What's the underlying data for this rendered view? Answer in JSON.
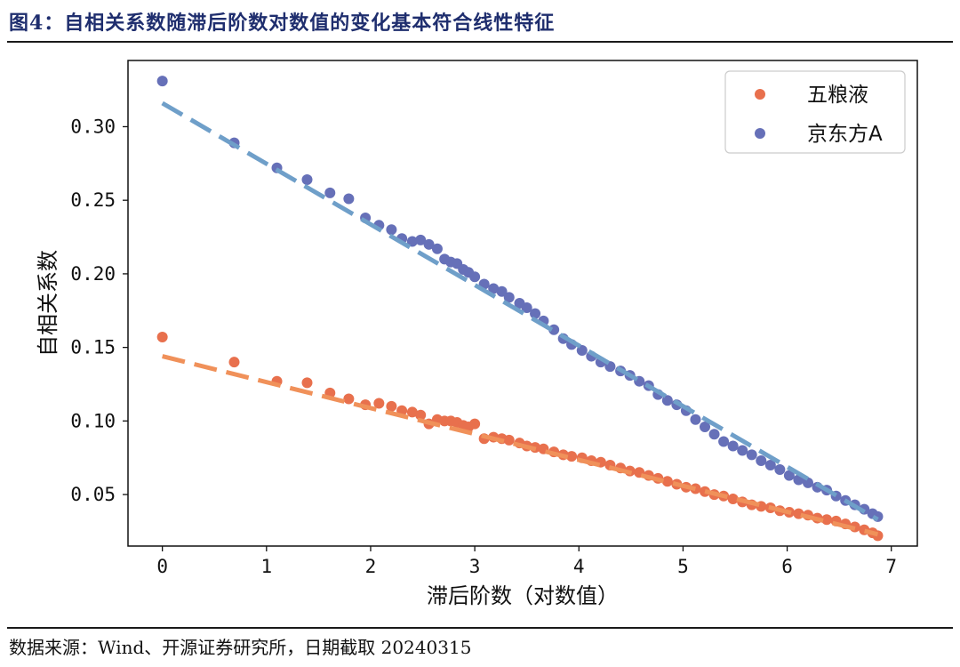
{
  "figure_title": "图4：自相关系数随滞后阶数对数值的变化基本符合线性特征",
  "source_note": "数据来源：Wind、开源证券研究所，日期截取 20240315",
  "chart_data": {
    "type": "scatter",
    "xlabel": "滞后阶数（对数值）",
    "ylabel": "自相关系数",
    "xlim": [
      -0.33,
      7.25
    ],
    "ylim": [
      0.015,
      0.345
    ],
    "xticks": [
      0,
      1,
      2,
      3,
      4,
      5,
      6,
      7
    ],
    "yticks": [
      0.05,
      0.1,
      0.15,
      0.2,
      0.25,
      0.3
    ],
    "ytick_labels": [
      "0.05",
      "0.10",
      "0.15",
      "0.20",
      "0.25",
      "0.30"
    ],
    "legend_position": "top-right",
    "series": [
      {
        "name": "五粮液",
        "color": "#e8704d",
        "trend_color": "#f0915a",
        "points": [
          [
            0.0,
            0.157
          ],
          [
            0.69,
            0.14
          ],
          [
            1.1,
            0.127
          ],
          [
            1.39,
            0.126
          ],
          [
            1.61,
            0.119
          ],
          [
            1.79,
            0.115
          ],
          [
            1.95,
            0.111
          ],
          [
            2.08,
            0.112
          ],
          [
            2.2,
            0.11
          ],
          [
            2.3,
            0.107
          ],
          [
            2.4,
            0.106
          ],
          [
            2.48,
            0.104
          ],
          [
            2.56,
            0.098
          ],
          [
            2.64,
            0.101
          ],
          [
            2.71,
            0.1
          ],
          [
            2.77,
            0.1
          ],
          [
            2.83,
            0.099
          ],
          [
            2.89,
            0.097
          ],
          [
            2.94,
            0.096
          ],
          [
            3.0,
            0.098
          ],
          [
            3.09,
            0.088
          ],
          [
            3.18,
            0.089
          ],
          [
            3.26,
            0.088
          ],
          [
            3.33,
            0.087
          ],
          [
            3.43,
            0.085
          ],
          [
            3.5,
            0.083
          ],
          [
            3.58,
            0.082
          ],
          [
            3.66,
            0.081
          ],
          [
            3.76,
            0.079
          ],
          [
            3.85,
            0.077
          ],
          [
            3.93,
            0.076
          ],
          [
            4.03,
            0.075
          ],
          [
            4.12,
            0.073
          ],
          [
            4.21,
            0.072
          ],
          [
            4.3,
            0.07
          ],
          [
            4.4,
            0.068
          ],
          [
            4.49,
            0.066
          ],
          [
            4.58,
            0.065
          ],
          [
            4.67,
            0.063
          ],
          [
            4.76,
            0.061
          ],
          [
            4.85,
            0.059
          ],
          [
            4.94,
            0.057
          ],
          [
            5.03,
            0.055
          ],
          [
            5.12,
            0.054
          ],
          [
            5.21,
            0.052
          ],
          [
            5.3,
            0.05
          ],
          [
            5.39,
            0.049
          ],
          [
            5.48,
            0.047
          ],
          [
            5.57,
            0.045
          ],
          [
            5.66,
            0.043
          ],
          [
            5.75,
            0.042
          ],
          [
            5.84,
            0.041
          ],
          [
            5.93,
            0.039
          ],
          [
            6.02,
            0.038
          ],
          [
            6.11,
            0.037
          ],
          [
            6.2,
            0.036
          ],
          [
            6.29,
            0.034
          ],
          [
            6.38,
            0.033
          ],
          [
            6.47,
            0.032
          ],
          [
            6.56,
            0.03
          ],
          [
            6.65,
            0.028
          ],
          [
            6.74,
            0.026
          ],
          [
            6.82,
            0.024
          ],
          [
            6.87,
            0.022
          ]
        ],
        "trend": [
          [
            0.0,
            0.144
          ],
          [
            6.87,
            0.023
          ]
        ]
      },
      {
        "name": "京东方A",
        "color": "#6670b8",
        "trend_color": "#6f9fc9",
        "points": [
          [
            0.0,
            0.331
          ],
          [
            0.69,
            0.289
          ],
          [
            1.1,
            0.272
          ],
          [
            1.39,
            0.264
          ],
          [
            1.61,
            0.255
          ],
          [
            1.79,
            0.251
          ],
          [
            1.95,
            0.238
          ],
          [
            2.08,
            0.233
          ],
          [
            2.2,
            0.23
          ],
          [
            2.3,
            0.224
          ],
          [
            2.4,
            0.222
          ],
          [
            2.48,
            0.223
          ],
          [
            2.56,
            0.22
          ],
          [
            2.64,
            0.217
          ],
          [
            2.71,
            0.21
          ],
          [
            2.77,
            0.208
          ],
          [
            2.83,
            0.207
          ],
          [
            2.89,
            0.203
          ],
          [
            2.94,
            0.201
          ],
          [
            3.0,
            0.198
          ],
          [
            3.09,
            0.193
          ],
          [
            3.18,
            0.19
          ],
          [
            3.26,
            0.188
          ],
          [
            3.33,
            0.184
          ],
          [
            3.43,
            0.18
          ],
          [
            3.5,
            0.177
          ],
          [
            3.58,
            0.173
          ],
          [
            3.66,
            0.168
          ],
          [
            3.76,
            0.162
          ],
          [
            3.85,
            0.156
          ],
          [
            3.93,
            0.152
          ],
          [
            4.03,
            0.148
          ],
          [
            4.12,
            0.144
          ],
          [
            4.21,
            0.14
          ],
          [
            4.3,
            0.137
          ],
          [
            4.4,
            0.134
          ],
          [
            4.49,
            0.131
          ],
          [
            4.58,
            0.127
          ],
          [
            4.67,
            0.124
          ],
          [
            4.76,
            0.118
          ],
          [
            4.85,
            0.114
          ],
          [
            4.94,
            0.111
          ],
          [
            5.03,
            0.107
          ],
          [
            5.12,
            0.101
          ],
          [
            5.21,
            0.096
          ],
          [
            5.3,
            0.091
          ],
          [
            5.39,
            0.086
          ],
          [
            5.48,
            0.083
          ],
          [
            5.57,
            0.08
          ],
          [
            5.66,
            0.077
          ],
          [
            5.75,
            0.073
          ],
          [
            5.84,
            0.07
          ],
          [
            5.93,
            0.067
          ],
          [
            6.02,
            0.063
          ],
          [
            6.11,
            0.06
          ],
          [
            6.2,
            0.058
          ],
          [
            6.29,
            0.055
          ],
          [
            6.38,
            0.053
          ],
          [
            6.47,
            0.049
          ],
          [
            6.56,
            0.046
          ],
          [
            6.65,
            0.043
          ],
          [
            6.74,
            0.04
          ],
          [
            6.82,
            0.037
          ],
          [
            6.87,
            0.035
          ]
        ],
        "trend": [
          [
            0.0,
            0.316
          ],
          [
            6.87,
            0.033
          ]
        ]
      }
    ]
  }
}
